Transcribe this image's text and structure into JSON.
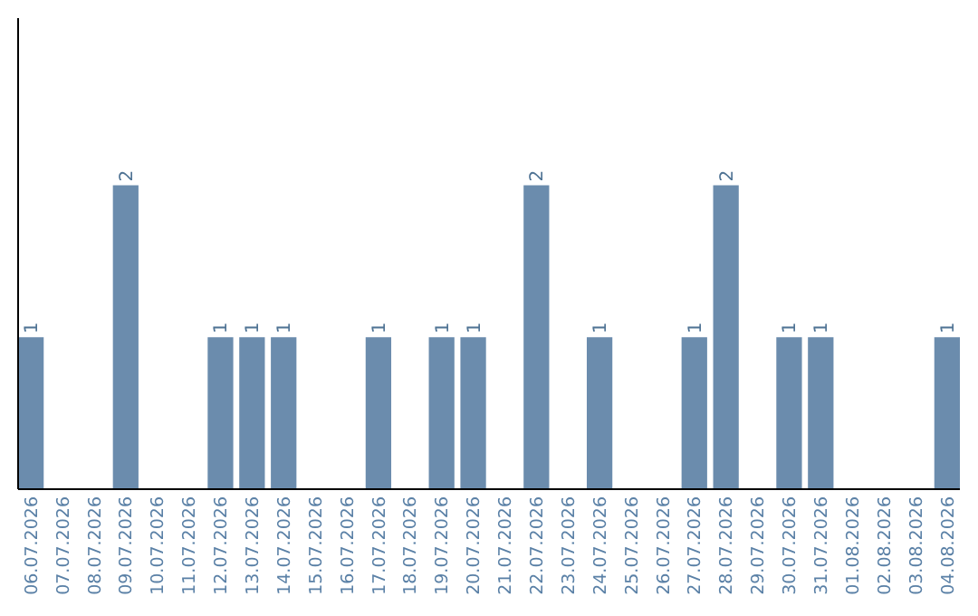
{
  "chart_data": {
    "type": "bar",
    "categories": [
      "06.07.2026",
      "07.07.2026",
      "08.07.2026",
      "09.07.2026",
      "10.07.2026",
      "11.07.2026",
      "12.07.2026",
      "13.07.2026",
      "14.07.2026",
      "15.07.2026",
      "16.07.2026",
      "17.07.2026",
      "18.07.2026",
      "19.07.2026",
      "20.07.2026",
      "21.07.2026",
      "22.07.2026",
      "23.07.2026",
      "24.07.2026",
      "25.07.2026",
      "26.07.2026",
      "27.07.2026",
      "28.07.2026",
      "29.07.2026",
      "30.07.2026",
      "31.07.2026",
      "01.08.2026",
      "02.08.2026",
      "03.08.2026",
      "04.08.2026"
    ],
    "values": [
      1,
      0,
      0,
      2,
      0,
      0,
      1,
      1,
      1,
      0,
      0,
      1,
      0,
      1,
      1,
      0,
      2,
      0,
      1,
      0,
      0,
      1,
      2,
      0,
      1,
      1,
      0,
      0,
      0,
      1
    ],
    "value_labels": [
      "1",
      null,
      null,
      "2",
      null,
      null,
      "1",
      "1",
      "1",
      null,
      null,
      "1",
      null,
      "1",
      "1",
      null,
      "2",
      null,
      "1",
      null,
      null,
      "1",
      "2",
      null,
      "1",
      "1",
      null,
      null,
      null,
      "1"
    ],
    "color": "#6b8cad",
    "ylim": [
      0,
      3.1
    ],
    "tick_labels": "x",
    "grid": false
  }
}
